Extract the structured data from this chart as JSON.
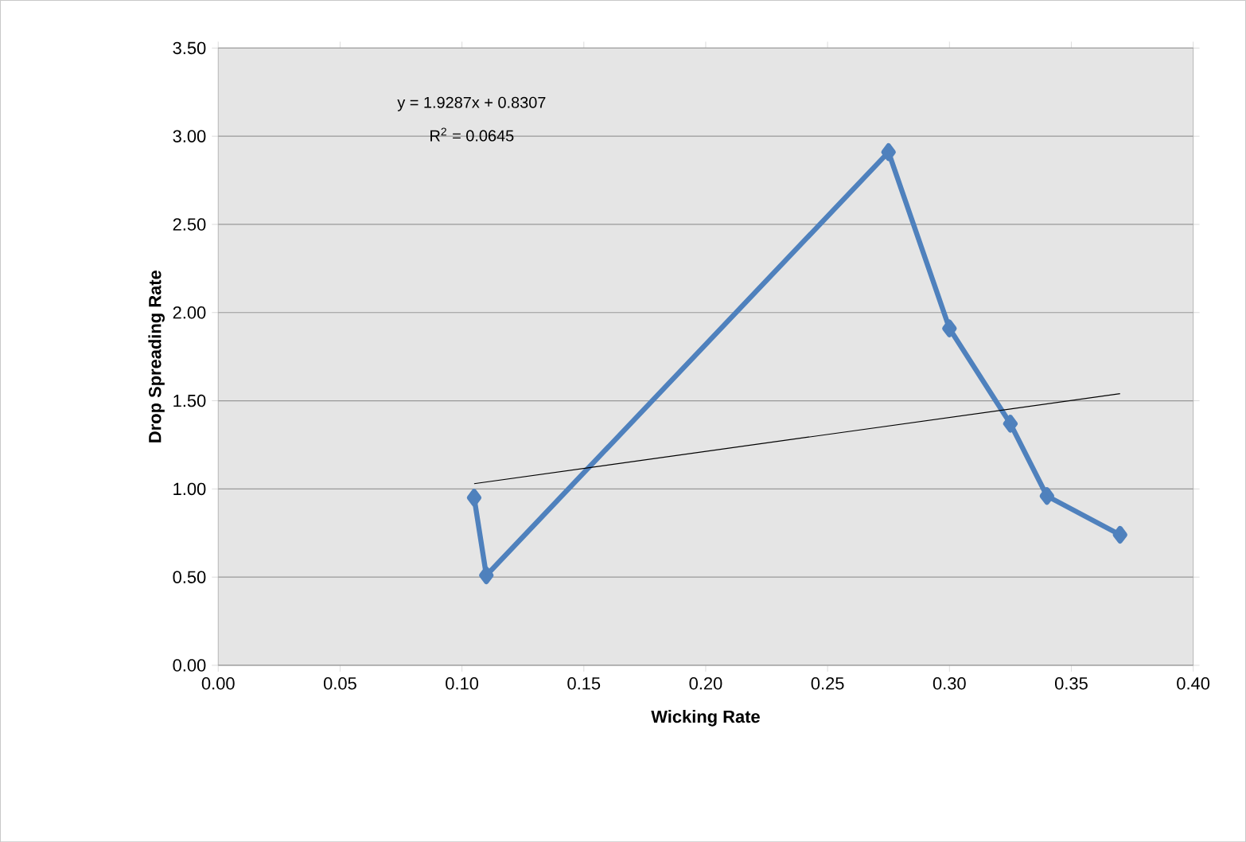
{
  "chart_data": {
    "type": "line",
    "xlabel": "Wicking Rate",
    "ylabel": "Drop Spreading Rate",
    "xlim": [
      0,
      0.4
    ],
    "ylim": [
      0,
      3.5
    ],
    "xticks": [
      {
        "value": 0,
        "label": "0.00"
      },
      {
        "value": 0.05,
        "label": "0.05"
      },
      {
        "value": 0.1,
        "label": "0.10"
      },
      {
        "value": 0.15,
        "label": "0.15"
      },
      {
        "value": 0.2,
        "label": "0.20"
      },
      {
        "value": 0.25,
        "label": "0.25"
      },
      {
        "value": 0.3,
        "label": "0.30"
      },
      {
        "value": 0.35,
        "label": "0.35"
      },
      {
        "value": 0.4,
        "label": "0.40"
      }
    ],
    "yticks": [
      {
        "value": 0,
        "label": "0.00"
      },
      {
        "value": 0.5,
        "label": "0.50"
      },
      {
        "value": 1,
        "label": "1.00"
      },
      {
        "value": 1.5,
        "label": "1.50"
      },
      {
        "value": 2,
        "label": "2.00"
      },
      {
        "value": 2.5,
        "label": "2.50"
      },
      {
        "value": 3,
        "label": "3.00"
      },
      {
        "value": 3.5,
        "label": "3.50"
      }
    ],
    "grid": "y",
    "series": [
      {
        "color": "#4f81bd",
        "marker": "diamond",
        "x": [
          0.105,
          0.11,
          0.275,
          0.3,
          0.325,
          0.34,
          0.37
        ],
        "values": [
          0.95,
          0.51,
          2.91,
          1.91,
          1.37,
          0.96,
          0.74
        ]
      },
      {
        "type": "line",
        "color": "#000000",
        "marker": "none",
        "x": [
          0.105,
          0.37
        ],
        "values": [
          1.03,
          1.54
        ]
      }
    ],
    "annotations": [
      "y = 1.9287x  + 0.8307",
      "R$^{2}$ = 0.0645"
    ]
  }
}
